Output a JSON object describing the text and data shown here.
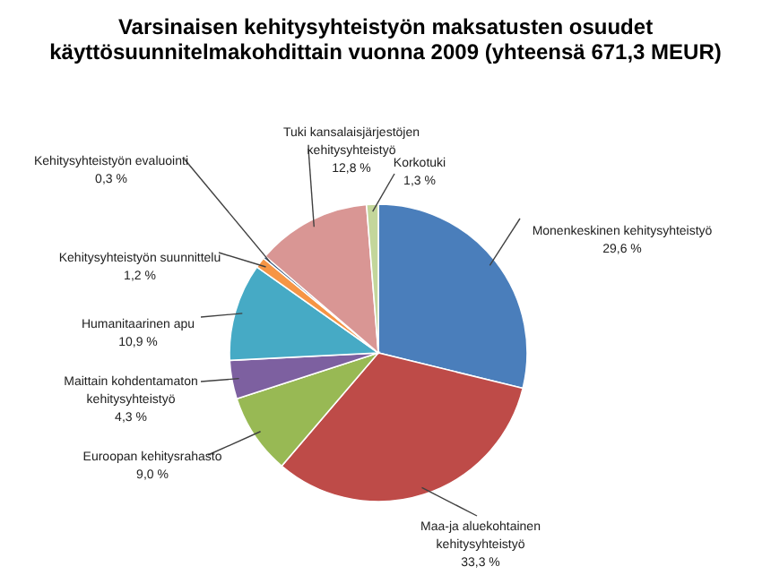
{
  "chart_data": {
    "type": "pie",
    "title": [
      "Varsinaisen kehitysyhteistyön maksatusten osuudet",
      "käyttösuunnitelmakohdittain vuonna 2009 (yhteensä 671,3 MEUR)"
    ],
    "categories": [
      "Monenkeskinen kehitysyhteistyö",
      "Maa-ja aluekohtainen kehitysyhteistyö",
      "Euroopan kehitysrahasto",
      "Maittain kohdentamaton kehitysyhteistyö",
      "Humanitaarinen apu",
      "Kehitysyhteistyön suunnittelu",
      "Kehitysyhteistyön evaluointi",
      "Tuki kansalaisjärjestöjen kehitysyhteistyö",
      "Korkotuki"
    ],
    "values": [
      29.6,
      33.3,
      9.0,
      4.3,
      10.9,
      1.2,
      0.3,
      12.8,
      1.3
    ],
    "value_labels": [
      "29,6 %",
      "33,3 %",
      "9,0 %",
      "4,3 %",
      "10,9 %",
      "1,2 %",
      "0,3 %",
      "12,8 %",
      "1,3 %"
    ],
    "colors": [
      "#4a7ebb",
      "#be4b48",
      "#98b954",
      "#7d60a0",
      "#46aac5",
      "#f69545",
      "#2c4d75",
      "#d99694",
      "#c3d69b"
    ]
  }
}
